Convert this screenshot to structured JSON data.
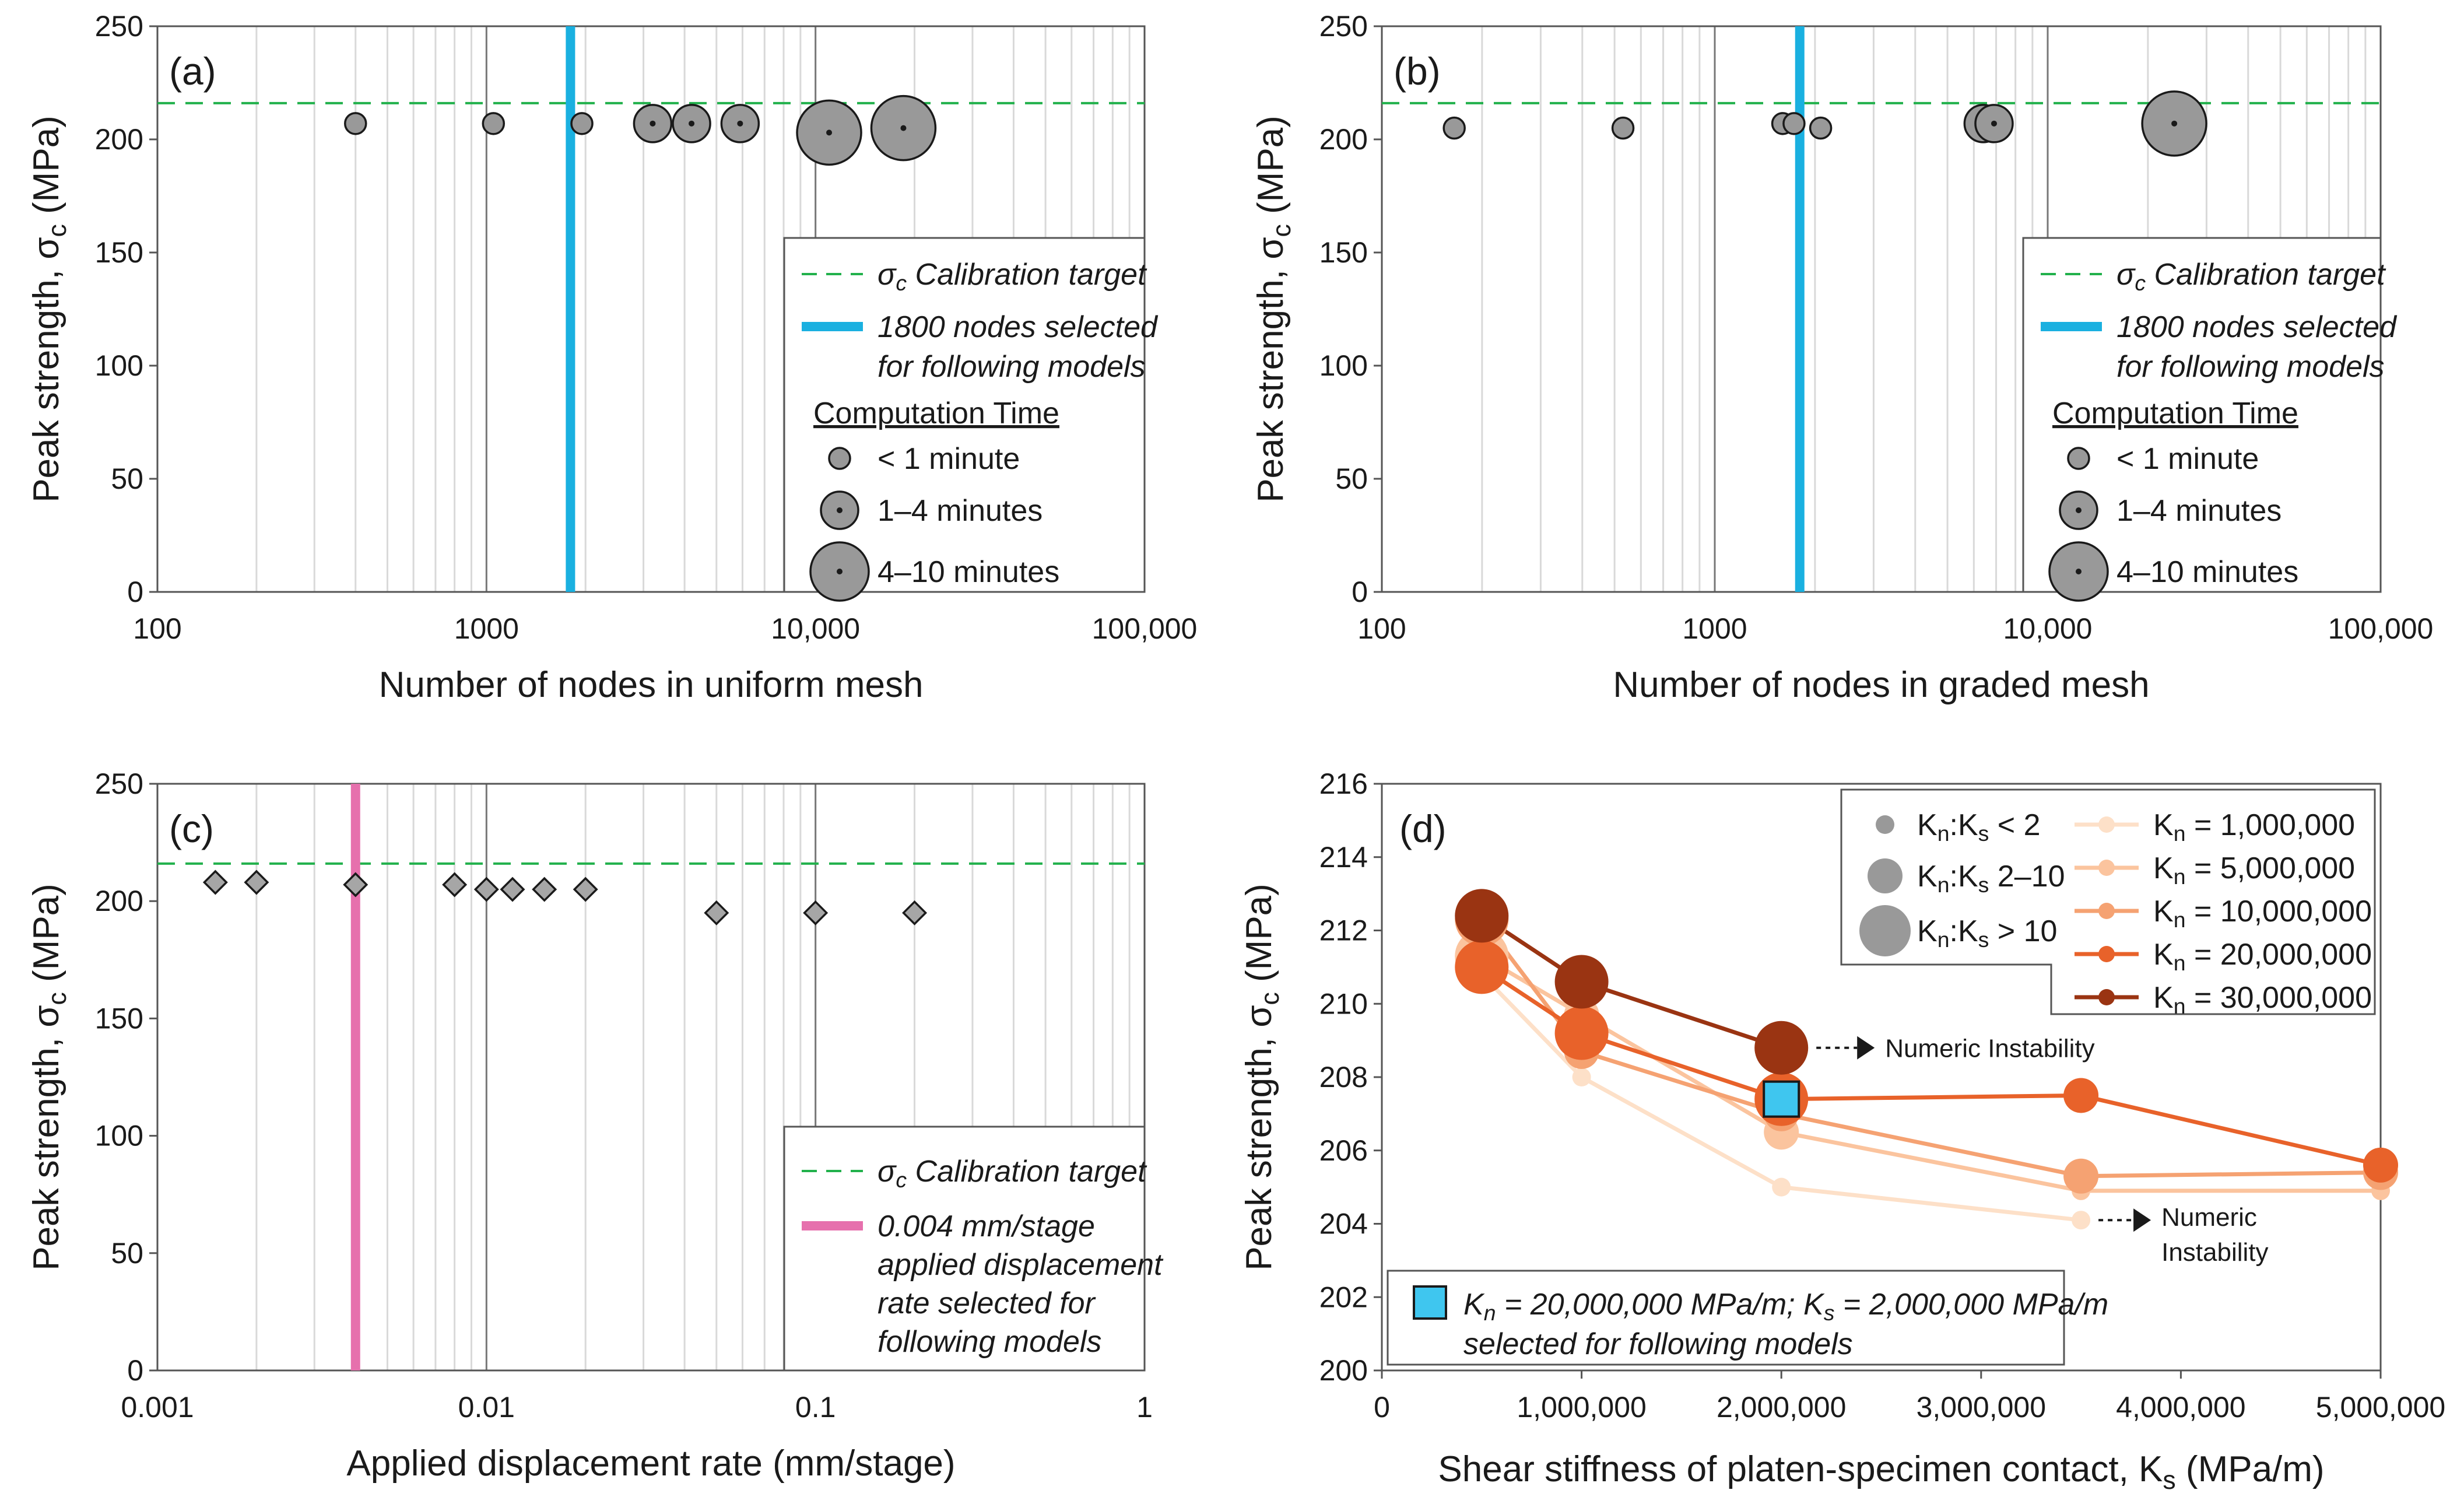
{
  "chart_data": [
    {
      "id": "a",
      "type": "scatter",
      "panel_label": "(a)",
      "xscale": "log",
      "xlim": [
        100,
        100000
      ],
      "ylim": [
        0,
        250
      ],
      "xticks": [
        "100",
        "1000",
        "10,000",
        "100,000"
      ],
      "yticks": [
        "0",
        "50",
        "100",
        "150",
        "200",
        "250"
      ],
      "xlabel": "Number of nodes in uniform mesh",
      "ylabel": "Peak strength, σc (MPa)",
      "target": 216,
      "selection": {
        "x": 1800,
        "color": "#1ab0e0"
      },
      "points": [
        {
          "x": 400,
          "y": 207,
          "size": "small"
        },
        {
          "x": 1050,
          "y": 207,
          "size": "small"
        },
        {
          "x": 1950,
          "y": 207,
          "size": "small"
        },
        {
          "x": 3200,
          "y": 207,
          "size": "medium"
        },
        {
          "x": 4200,
          "y": 207,
          "size": "medium"
        },
        {
          "x": 5900,
          "y": 207,
          "size": "medium"
        },
        {
          "x": 11000,
          "y": 203,
          "size": "large"
        },
        {
          "x": 18500,
          "y": 205,
          "size": "large"
        }
      ],
      "legend": {
        "target_label": "σc Calibration target",
        "selection_label_1": "1800 nodes selected",
        "selection_label_2": "for following models",
        "time_title": "Computation Time",
        "time_small": "< 1 minute",
        "time_medium": "1–4 minutes",
        "time_large": "4–10 minutes"
      }
    },
    {
      "id": "b",
      "type": "scatter",
      "panel_label": "(b)",
      "xscale": "log",
      "xlim": [
        100,
        100000
      ],
      "ylim": [
        0,
        250
      ],
      "xticks": [
        "100",
        "1000",
        "10,000",
        "100,000"
      ],
      "yticks": [
        "0",
        "50",
        "100",
        "150",
        "200",
        "250"
      ],
      "xlabel": "Number of nodes in graded mesh",
      "ylabel": "Peak strength, σc (MPa)",
      "target": 216,
      "selection": {
        "x": 1800,
        "color": "#1ab0e0"
      },
      "points": [
        {
          "x": 165,
          "y": 205,
          "size": "small"
        },
        {
          "x": 530,
          "y": 205,
          "size": "small"
        },
        {
          "x": 1600,
          "y": 207,
          "size": "small"
        },
        {
          "x": 1730,
          "y": 207,
          "size": "small"
        },
        {
          "x": 2080,
          "y": 205,
          "size": "small"
        },
        {
          "x": 6400,
          "y": 207,
          "size": "medium"
        },
        {
          "x": 6900,
          "y": 207,
          "size": "medium"
        },
        {
          "x": 24000,
          "y": 207,
          "size": "large"
        }
      ],
      "legend": {
        "target_label": "σc Calibration target",
        "selection_label_1": "1800 nodes selected",
        "selection_label_2": "for following models",
        "time_title": "Computation Time",
        "time_small": "< 1 minute",
        "time_medium": "1–4 minutes",
        "time_large": "4–10 minutes"
      }
    },
    {
      "id": "c",
      "type": "scatter",
      "panel_label": "(c)",
      "xscale": "log",
      "xlim": [
        0.001,
        1
      ],
      "ylim": [
        0,
        250
      ],
      "xticks": [
        "0.001",
        "0.01",
        "0.1",
        "1"
      ],
      "yticks": [
        "0",
        "50",
        "100",
        "150",
        "200",
        "250"
      ],
      "xlabel": "Applied displacement rate (mm/stage)",
      "ylabel": "Peak strength, σc (MPa)",
      "target": 216,
      "selection": {
        "x": 0.004,
        "color": "#e670ad"
      },
      "points": [
        {
          "x": 0.0015,
          "y": 208
        },
        {
          "x": 0.002,
          "y": 208
        },
        {
          "x": 0.004,
          "y": 207
        },
        {
          "x": 0.008,
          "y": 207
        },
        {
          "x": 0.01,
          "y": 205
        },
        {
          "x": 0.012,
          "y": 205
        },
        {
          "x": 0.015,
          "y": 205
        },
        {
          "x": 0.02,
          "y": 205
        },
        {
          "x": 0.05,
          "y": 195
        },
        {
          "x": 0.1,
          "y": 195
        },
        {
          "x": 0.2,
          "y": 195
        }
      ],
      "legend": {
        "target_label": "σc Calibration target",
        "selection_lines": [
          "0.004 mm/stage",
          "applied displacement",
          "rate selected for",
          "following models"
        ]
      }
    },
    {
      "id": "d",
      "type": "line",
      "panel_label": "(d)",
      "xlim": [
        0,
        5000000
      ],
      "ylim": [
        200,
        216
      ],
      "xticks": [
        "0",
        "1,000,000",
        "2,000,000",
        "3,000,000",
        "4,000,000",
        "5,000,000"
      ],
      "yticks": [
        "200",
        "202",
        "204",
        "206",
        "208",
        "210",
        "212",
        "214",
        "216"
      ],
      "xlabel": "Shear stiffness of platen-specimen contact, Ks (MPa/m)",
      "ylabel": "Peak strength, σc (MPa)",
      "series": [
        {
          "name": "Kn = 1,000,000",
          "color": "#fde0c8",
          "x": [
            500000,
            1000000,
            2000000,
            3500000
          ],
          "y": [
            210.8,
            208.0,
            205.0,
            204.1
          ],
          "sizes": [
            "medium",
            "small",
            "small",
            "small"
          ]
        },
        {
          "name": "Kn = 5,000,000",
          "color": "#fbc49e",
          "x": [
            500000,
            1000000,
            2000000,
            3500000,
            5000000
          ],
          "y": [
            211.3,
            209.7,
            206.5,
            204.9,
            204.9
          ],
          "sizes": [
            "large",
            "medium",
            "medium",
            "small",
            "small"
          ]
        },
        {
          "name": "Kn = 10,000,000",
          "color": "#f5a272",
          "x": [
            500000,
            1000000,
            2000000,
            3500000,
            5000000
          ],
          "y": [
            212.3,
            208.7,
            207.0,
            205.3,
            205.4
          ],
          "sizes": [
            "large",
            "medium",
            "medium",
            "medium",
            "medium"
          ]
        },
        {
          "name": "Kn = 20,000,000",
          "color": "#e8622a",
          "x": [
            500000,
            1000000,
            2000000,
            3500000,
            5000000
          ],
          "y": [
            211.0,
            209.2,
            207.4,
            207.5,
            205.6
          ],
          "sizes": [
            "large",
            "large",
            "large",
            "medium",
            "medium"
          ]
        },
        {
          "name": "Kn = 30,000,000",
          "color": "#9a3412",
          "x": [
            500000,
            1000000,
            2000000
          ],
          "y": [
            212.4,
            210.6,
            208.8
          ],
          "sizes": [
            "large",
            "large",
            "large"
          ]
        }
      ],
      "selected_point": {
        "x": 2000000,
        "y": 207.4,
        "color": "#3fc6ef"
      },
      "annotations": {
        "instability_1": "Numeric Instability",
        "instability_2a": "Numeric",
        "instability_2b": "Instability"
      },
      "legend": {
        "ratio_small": "Kn:Ks < 2",
        "ratio_medium": "Kn:Ks 2–10",
        "ratio_large": "Kn:Ks > 10",
        "selection_line_1": "Kn = 20,000,000 MPa/m; Ks = 2,000,000 MPa/m",
        "selection_line_2": "selected for following models"
      }
    }
  ]
}
